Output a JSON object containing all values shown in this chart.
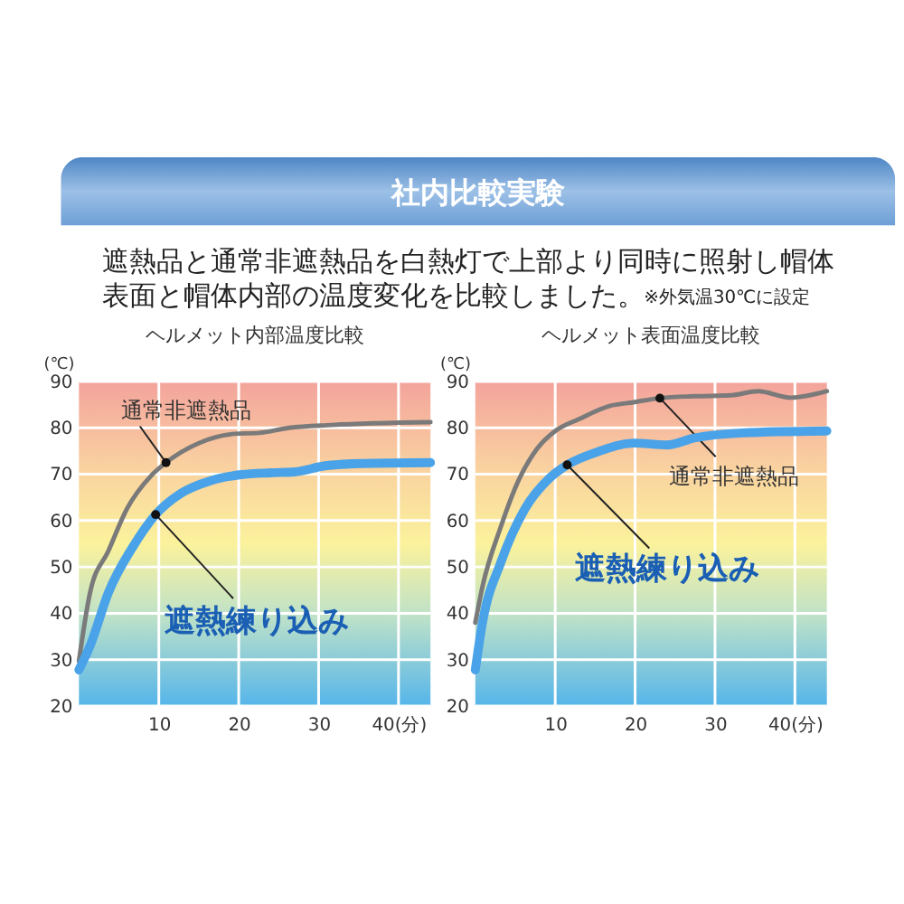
{
  "chart_data": [
    {
      "type": "other",
      "title": "社内比較実験",
      "annotations": [
        "遮熱品と通常非遮熱品を白熱灯で上部より同時に照射し帽体表面と帽体内部の温度変化を比較しました。",
        "※外気温30℃に設定"
      ]
    },
    {
      "type": "line",
      "title": "ヘルメット内部温度比較",
      "ylabel": "(℃)",
      "xlim": [
        0,
        44
      ],
      "xticks": [
        10,
        20,
        30,
        {
          "value": 40,
          "label": "40(分)"
        }
      ],
      "ylim": [
        20,
        90
      ],
      "yticks": [
        20,
        30,
        40,
        50,
        60,
        70,
        80,
        90
      ],
      "grid": true,
      "series": [
        {
          "name": "通常非遮熱品",
          "color": "#7a7a7a",
          "x": [
            0,
            1.4,
            3.7,
            6,
            9,
            10.9,
            15,
            19.5,
            22.5,
            26.3,
            31.6,
            44
          ],
          "values": [
            29.7,
            44.5,
            53.5,
            62.5,
            69.6,
            72.5,
            76.7,
            78.7,
            78.9,
            80,
            80.6,
            81.2
          ]
        },
        {
          "name": "遮熱練り込み",
          "color": "#4aa3e8",
          "x": [
            0,
            1.4,
            3.7,
            6.7,
            9.6,
            12.7,
            16.5,
            20.3,
            24,
            27,
            30.8,
            35.3,
            44
          ],
          "values": [
            27.8,
            33,
            44.5,
            54.2,
            61.3,
            65.8,
            68.6,
            69.9,
            70.3,
            70.5,
            71.8,
            72.3,
            72.5
          ]
        }
      ]
    },
    {
      "type": "line",
      "title": "ヘルメット表面温度比較",
      "ylabel": "(℃)",
      "xlim": [
        0,
        44
      ],
      "xticks": [
        10,
        20,
        30,
        {
          "value": 40,
          "label": "40(分)"
        }
      ],
      "ylim": [
        20,
        90
      ],
      "yticks": [
        20,
        30,
        40,
        50,
        60,
        70,
        80,
        90
      ],
      "grid": true,
      "series": [
        {
          "name": "通常非遮熱品",
          "color": "#7a7a7a",
          "x": [
            0,
            0.9,
            3.2,
            5.5,
            7.7,
            10,
            13,
            16.8,
            19.8,
            23.1,
            27.4,
            32,
            35.4,
            39.5,
            44
          ],
          "values": [
            38,
            45.8,
            58.7,
            69,
            75.4,
            79.3,
            81.9,
            84.7,
            85.5,
            86.4,
            86.8,
            87,
            87.9,
            86.5,
            87.9
          ]
        },
        {
          "name": "遮熱練り込み",
          "color": "#4aa3e8",
          "x": [
            0,
            0.9,
            3.2,
            6.2,
            9.2,
            11.5,
            15.3,
            19.8,
            24,
            27.4,
            33.5,
            44
          ],
          "values": [
            27.8,
            38,
            51,
            62.5,
            69,
            72,
            74.8,
            76.7,
            76.3,
            77.8,
            78.9,
            79.3
          ]
        }
      ]
    }
  ]
}
